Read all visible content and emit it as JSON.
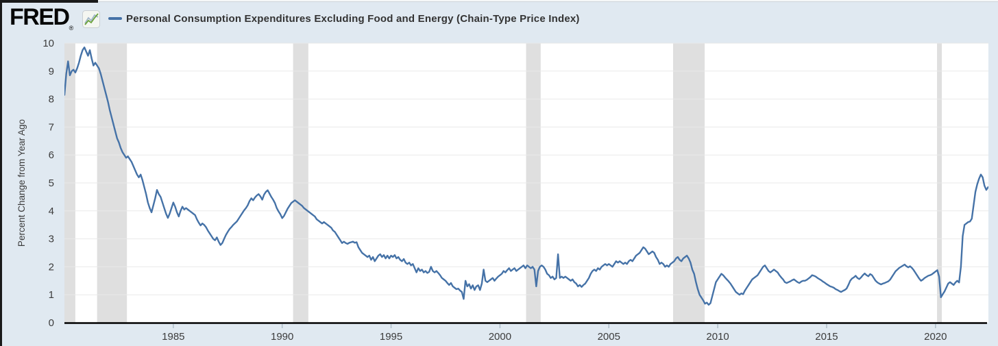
{
  "header": {
    "logo_text": "FRED",
    "registered_mark": "®",
    "series_label": "Personal Consumption Expenditures Excluding Food and Energy (Chain-Type Price Index)"
  },
  "colors": {
    "background": "#e0e9f1",
    "plot_background": "#ffffff",
    "line": "#4572a7",
    "recession_band": "#dfdfdf",
    "gridline": "#e9e9e9",
    "axis_line": "#000000",
    "tick_text": "#3c3c3c",
    "x_tick_mark": "#aebdc9",
    "logo_icon_green": "#6aa23a",
    "logo_icon_blue": "#9fb4c8"
  },
  "chart_data": {
    "type": "line",
    "title": "Personal Consumption Expenditures Excluding Food and Energy (Chain-Type Price Index)",
    "xlabel": "",
    "ylabel": "Percent Change from Year Ago",
    "legend_position": "top",
    "grid": true,
    "ylim": [
      0,
      10
    ],
    "xlim_years": [
      1980.0,
      2022.55
    ],
    "y_ticks": [
      0,
      1,
      2,
      3,
      4,
      5,
      6,
      7,
      8,
      9,
      10
    ],
    "x_ticks": [
      1985,
      1990,
      1995,
      2000,
      2005,
      2010,
      2015,
      2020
    ],
    "frequency": "monthly",
    "x_start": "1980-01",
    "x_end": "2022-06",
    "recession_bands_years": [
      [
        1980.0,
        1980.5
      ],
      [
        1981.5,
        1982.87
      ],
      [
        1990.5,
        1991.2
      ],
      [
        2001.2,
        2001.87
      ],
      [
        2007.95,
        2009.4
      ],
      [
        2020.07,
        2020.29
      ]
    ],
    "values": [
      8.15,
      8.9,
      9.35,
      8.85,
      9.0,
      9.05,
      8.95,
      9.1,
      9.3,
      9.55,
      9.75,
      9.85,
      9.7,
      9.55,
      9.75,
      9.45,
      9.2,
      9.3,
      9.2,
      9.1,
      8.9,
      8.65,
      8.4,
      8.15,
      7.9,
      7.6,
      7.35,
      7.1,
      6.85,
      6.6,
      6.45,
      6.25,
      6.1,
      6.0,
      5.9,
      5.95,
      5.85,
      5.75,
      5.6,
      5.45,
      5.3,
      5.2,
      5.3,
      5.1,
      4.85,
      4.6,
      4.3,
      4.1,
      3.95,
      4.2,
      4.45,
      4.75,
      4.6,
      4.5,
      4.3,
      4.1,
      3.9,
      3.75,
      3.9,
      4.1,
      4.3,
      4.15,
      3.95,
      3.8,
      4.0,
      4.15,
      4.05,
      4.1,
      4.05,
      4.0,
      3.95,
      3.9,
      3.85,
      3.7,
      3.58,
      3.48,
      3.55,
      3.5,
      3.42,
      3.3,
      3.2,
      3.1,
      3.0,
      2.95,
      3.05,
      2.9,
      2.78,
      2.85,
      3.0,
      3.14,
      3.25,
      3.35,
      3.42,
      3.5,
      3.56,
      3.62,
      3.72,
      3.82,
      3.92,
      4.02,
      4.1,
      4.2,
      4.35,
      4.45,
      4.38,
      4.48,
      4.55,
      4.6,
      4.52,
      4.4,
      4.58,
      4.68,
      4.74,
      4.62,
      4.5,
      4.4,
      4.28,
      4.1,
      3.98,
      3.88,
      3.74,
      3.82,
      3.95,
      4.08,
      4.18,
      4.28,
      4.33,
      4.38,
      4.33,
      4.28,
      4.23,
      4.18,
      4.1,
      4.05,
      4.0,
      3.95,
      3.9,
      3.85,
      3.8,
      3.7,
      3.65,
      3.6,
      3.55,
      3.6,
      3.55,
      3.5,
      3.45,
      3.4,
      3.3,
      3.25,
      3.15,
      3.05,
      2.95,
      2.85,
      2.9,
      2.85,
      2.82,
      2.86,
      2.88,
      2.9,
      2.86,
      2.88,
      2.7,
      2.6,
      2.5,
      2.45,
      2.4,
      2.35,
      2.4,
      2.25,
      2.35,
      2.2,
      2.3,
      2.4,
      2.45,
      2.35,
      2.42,
      2.3,
      2.4,
      2.3,
      2.4,
      2.35,
      2.42,
      2.3,
      2.35,
      2.25,
      2.2,
      2.28,
      2.15,
      2.1,
      2.15,
      2.05,
      2.1,
      1.95,
      1.8,
      1.95,
      1.85,
      1.9,
      1.8,
      1.85,
      1.78,
      1.82,
      2.0,
      1.85,
      1.8,
      1.85,
      1.78,
      1.7,
      1.6,
      1.55,
      1.5,
      1.42,
      1.35,
      1.42,
      1.3,
      1.25,
      1.2,
      1.22,
      1.15,
      1.1,
      0.85,
      1.5,
      1.3,
      1.38,
      1.22,
      1.34,
      1.17,
      1.3,
      1.34,
      1.17,
      1.4,
      1.9,
      1.5,
      1.45,
      1.5,
      1.55,
      1.6,
      1.5,
      1.58,
      1.65,
      1.7,
      1.75,
      1.85,
      1.8,
      1.88,
      1.95,
      1.85,
      1.9,
      1.95,
      1.85,
      1.9,
      1.95,
      2.0,
      2.05,
      1.95,
      2.05,
      2.0,
      1.95,
      2.0,
      1.9,
      1.3,
      1.85,
      2.0,
      2.05,
      2.0,
      1.9,
      1.75,
      1.7,
      1.6,
      1.65,
      1.55,
      1.6,
      2.45,
      1.6,
      1.65,
      1.6,
      1.65,
      1.6,
      1.55,
      1.5,
      1.55,
      1.45,
      1.4,
      1.3,
      1.35,
      1.28,
      1.35,
      1.4,
      1.5,
      1.6,
      1.75,
      1.85,
      1.9,
      1.85,
      1.95,
      1.9,
      2.0,
      2.05,
      2.1,
      2.05,
      2.1,
      2.05,
      2.0,
      2.1,
      2.2,
      2.15,
      2.2,
      2.15,
      2.1,
      2.15,
      2.1,
      2.2,
      2.25,
      2.2,
      2.3,
      2.4,
      2.45,
      2.5,
      2.6,
      2.7,
      2.65,
      2.55,
      2.45,
      2.5,
      2.55,
      2.5,
      2.35,
      2.25,
      2.1,
      2.15,
      2.1,
      2.0,
      2.05,
      2.0,
      2.1,
      2.15,
      2.2,
      2.3,
      2.35,
      2.25,
      2.2,
      2.3,
      2.35,
      2.4,
      2.3,
      2.15,
      1.9,
      1.75,
      1.45,
      1.2,
      1.0,
      0.9,
      0.8,
      0.68,
      0.72,
      0.64,
      0.7,
      0.95,
      1.2,
      1.45,
      1.55,
      1.65,
      1.75,
      1.7,
      1.62,
      1.55,
      1.48,
      1.4,
      1.3,
      1.2,
      1.1,
      1.05,
      1.0,
      1.05,
      1.02,
      1.15,
      1.25,
      1.35,
      1.45,
      1.55,
      1.6,
      1.65,
      1.7,
      1.8,
      1.9,
      2.0,
      2.05,
      1.95,
      1.85,
      1.8,
      1.85,
      1.9,
      1.85,
      1.8,
      1.7,
      1.62,
      1.55,
      1.45,
      1.42,
      1.45,
      1.48,
      1.52,
      1.55,
      1.5,
      1.45,
      1.42,
      1.47,
      1.5,
      1.5,
      1.53,
      1.58,
      1.63,
      1.7,
      1.68,
      1.65,
      1.6,
      1.56,
      1.52,
      1.47,
      1.43,
      1.38,
      1.34,
      1.3,
      1.28,
      1.25,
      1.2,
      1.17,
      1.13,
      1.1,
      1.14,
      1.17,
      1.22,
      1.35,
      1.5,
      1.58,
      1.62,
      1.68,
      1.6,
      1.56,
      1.62,
      1.7,
      1.76,
      1.7,
      1.66,
      1.74,
      1.7,
      1.6,
      1.5,
      1.44,
      1.4,
      1.37,
      1.4,
      1.42,
      1.45,
      1.48,
      1.54,
      1.64,
      1.74,
      1.84,
      1.9,
      1.96,
      2.0,
      2.04,
      2.08,
      2.02,
      1.98,
      2.02,
      1.96,
      1.88,
      1.78,
      1.68,
      1.58,
      1.5,
      1.54,
      1.6,
      1.64,
      1.68,
      1.7,
      1.73,
      1.78,
      1.83,
      1.88,
      1.65,
      0.91,
      1.02,
      1.12,
      1.26,
      1.4,
      1.45,
      1.4,
      1.35,
      1.44,
      1.5,
      1.44,
      2.0,
      3.1,
      3.5,
      3.55,
      3.6,
      3.62,
      3.72,
      4.2,
      4.68,
      4.95,
      5.15,
      5.3,
      5.2,
      4.9,
      4.75,
      4.85
    ]
  }
}
